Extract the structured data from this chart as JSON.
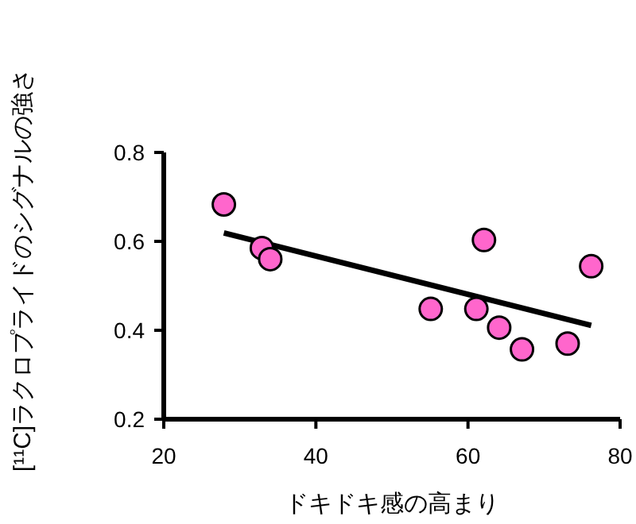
{
  "chart_data": {
    "type": "scatter",
    "xlabel": "ドキドキ感の高まり",
    "ylabel": "[¹¹C]ラクロプライドのシグナルの強さ",
    "xlim": [
      20,
      80
    ],
    "xticks": [
      20,
      40,
      60,
      80
    ],
    "ylim": [
      0.2,
      0.8
    ],
    "yticks": [
      0.2,
      0.4,
      0.6,
      0.8
    ],
    "grid": false,
    "series": [
      {
        "marker": "circle",
        "color": "#ff66cc",
        "x": [
          27.9,
          32.9,
          34.0,
          55.1,
          61.1,
          62.1,
          64.1,
          67.1,
          73.1,
          76.2
        ],
        "values": [
          0.683,
          0.585,
          0.56,
          0.448,
          0.448,
          0.603,
          0.406,
          0.357,
          0.37,
          0.544
        ]
      },
      {
        "type": "line",
        "color": "#000000",
        "x": [
          27.9,
          76.2
        ],
        "values": [
          0.619,
          0.411
        ]
      }
    ]
  }
}
